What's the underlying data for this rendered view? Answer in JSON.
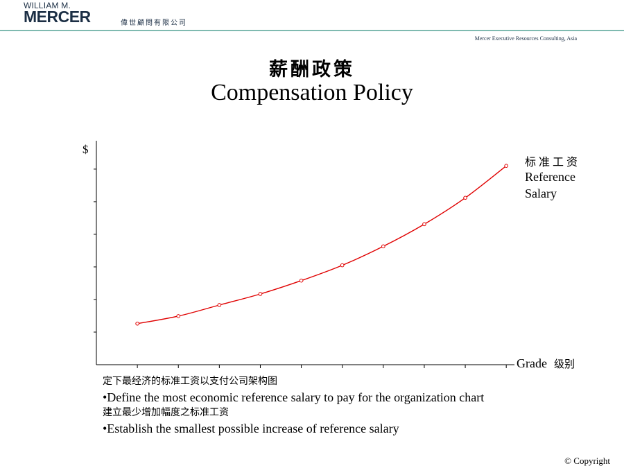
{
  "header": {
    "logo_top": "WILLIAM M.",
    "logo_main": "MERCER",
    "logo_cn": "偉世顧問有限公司",
    "tagline": "Mercer Executive Resources Consulting, Asia"
  },
  "title": {
    "cn": "薪酬政策",
    "en": "Compensation Policy"
  },
  "chart_data": {
    "type": "line",
    "ylabel": "$",
    "xlabel_en": "Grade",
    "xlabel_cn": "级别",
    "series_label": [
      "标准工资",
      "Reference",
      "Salary"
    ],
    "x": [
      1,
      2,
      3,
      4,
      5,
      6,
      7,
      8,
      9,
      10
    ],
    "values": [
      12.6,
      14.9,
      18.3,
      21.7,
      25.8,
      30.5,
      36.3,
      43.1,
      51.2,
      61.0
    ],
    "xlim": [
      0,
      10.2
    ],
    "ylim": [
      0,
      68.7
    ],
    "x_ticks": [
      1,
      2,
      3,
      4,
      5,
      6,
      7,
      8,
      9,
      10
    ],
    "y_ticks": [
      10,
      20,
      30,
      40,
      50,
      60
    ],
    "grid": false,
    "line_color": "#e00000"
  },
  "notes": [
    {
      "cn": "定下最经济的标准工资以支付公司架构图",
      "en": "•Define the most economic reference salary to pay for the organization chart"
    },
    {
      "cn": "建立最少增加幅度之标准工资",
      "en": "•Establish the smallest possible increase of reference salary"
    }
  ],
  "footer": {
    "copyright": "© Copyright"
  }
}
